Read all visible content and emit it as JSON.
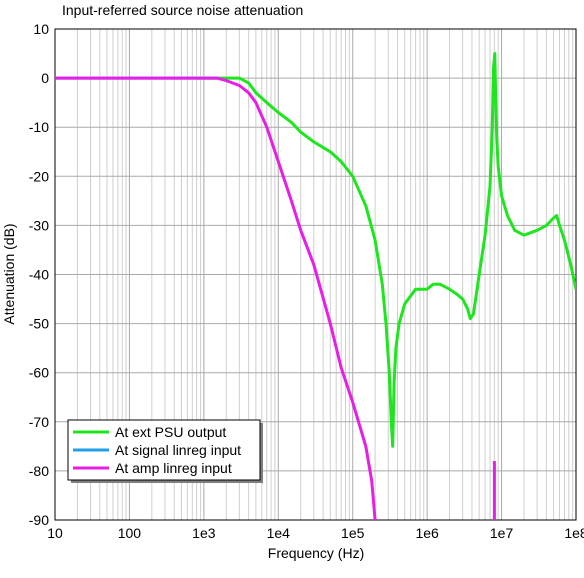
{
  "chart_data": {
    "type": "line",
    "title": "Input-referred source noise attenuation",
    "xlabel": "Frequency (Hz)",
    "ylabel": "Attenuation (dB)",
    "xscale": "log",
    "xlim": [
      10,
      100000000
    ],
    "ylim": [
      -90,
      10
    ],
    "grid": true,
    "legend_position": "bottom-left",
    "x_ticks": [
      10,
      100,
      1000,
      10000,
      100000,
      1000000,
      10000000,
      100000000
    ],
    "x_tick_labels": [
      "10",
      "100",
      "1e3",
      "1e4",
      "1e5",
      "1e6",
      "1e7",
      "1e8"
    ],
    "y_ticks": [
      10,
      0,
      -10,
      -20,
      -30,
      -40,
      -50,
      -60,
      -70,
      -80,
      -90
    ],
    "y_tick_labels": [
      "10",
      "0",
      "-10",
      "-20",
      "-30",
      "-40",
      "-50",
      "-60",
      "-70",
      "-80",
      "-90"
    ],
    "series": [
      {
        "name": "At ext PSU output",
        "color": "#1ee61e",
        "x": [
          800,
          1000,
          2000,
          3000,
          4000,
          5000,
          7000,
          10000,
          15000,
          20000,
          30000,
          50000,
          70000,
          100000,
          150000,
          200000,
          250000,
          280000,
          310000,
          330000,
          345000,
          360000,
          380000,
          420000,
          500000,
          700000,
          1000000,
          1200000,
          1500000,
          2000000,
          2500000,
          3000000,
          3500000,
          3800000,
          4200000,
          5000000,
          6000000,
          7000000,
          7500000,
          7800000,
          8100000,
          8300000,
          8600000,
          9000000,
          10000000,
          12000000,
          15000000,
          20000000,
          30000000,
          40000000,
          50000000,
          55000000,
          60000000,
          70000000,
          85000000,
          100000000
        ],
        "y": [
          0,
          0,
          0,
          0,
          -1,
          -3,
          -5,
          -7,
          -9,
          -11,
          -13,
          -15,
          -17,
          -20,
          -26,
          -33,
          -42,
          -50,
          -60,
          -70,
          -75,
          -62,
          -55,
          -50,
          -46,
          -43,
          -43,
          -42,
          -42,
          -43,
          -44,
          -45,
          -47,
          -49,
          -48,
          -40,
          -32,
          -22,
          -10,
          2,
          5,
          -2,
          -12,
          -18,
          -24,
          -28,
          -31,
          -32,
          -31,
          -30,
          -28.5,
          -28,
          -30,
          -33,
          -38,
          -43
        ]
      },
      {
        "name": "At signal linreg input",
        "color": "#1fa1e8",
        "x": [
          10,
          100,
          1000,
          1500
        ],
        "y": [
          0,
          0,
          0,
          0
        ]
      },
      {
        "name": "At amp linreg input",
        "color": "#e61ee6",
        "x": [
          10,
          100,
          1000,
          1500,
          2000,
          3000,
          4000,
          5000,
          7000,
          10000,
          15000,
          20000,
          30000,
          50000,
          70000,
          100000,
          150000,
          180000,
          200000
        ],
        "y": [
          0,
          0,
          0,
          0,
          -0.5,
          -1.5,
          -3,
          -5,
          -10,
          -17,
          -25,
          -31,
          -38,
          -50,
          -59,
          -66,
          -75,
          -82,
          -90
        ]
      },
      {
        "name": "",
        "color": "#e61ee6",
        "x": [
          8000000,
          8000000
        ],
        "y": [
          -78,
          -90
        ]
      }
    ]
  }
}
